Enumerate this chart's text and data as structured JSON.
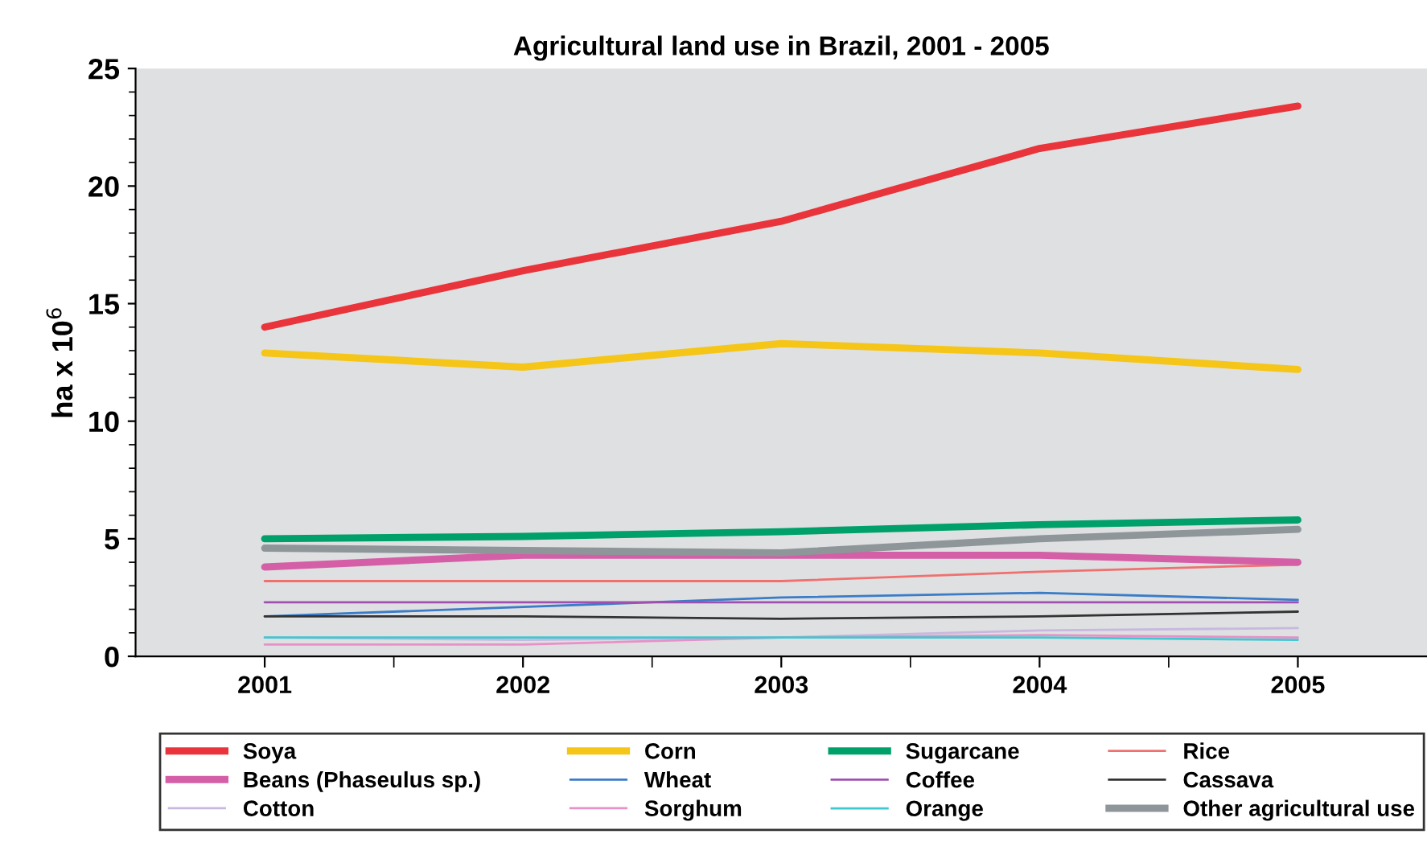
{
  "chart_data": {
    "type": "line",
    "title": "Agricultural land use in Brazil, 2001 - 2005",
    "ylabel": "ha x 10$^{6}$",
    "categories": [
      "2001",
      "2002",
      "2003",
      "2004",
      "2005"
    ],
    "ylim": [
      0,
      25
    ],
    "yticks": [
      0,
      5,
      10,
      15,
      20,
      25
    ],
    "grid": false,
    "legend": "bottom",
    "marker": "none",
    "line_style": "solid",
    "series": [
      {
        "name": "Soya",
        "color": "#e8343a",
        "values": [
          14.0,
          16.4,
          18.5,
          21.6,
          23.4
        ]
      },
      {
        "name": "Corn",
        "color": "#f5c518",
        "values": [
          12.9,
          12.3,
          13.3,
          12.9,
          12.2
        ]
      },
      {
        "name": "Sugarcane",
        "color": "#00a06b",
        "values": [
          5.0,
          5.1,
          5.3,
          5.6,
          5.8
        ]
      },
      {
        "name": "Rice",
        "color": "#f07070",
        "values": [
          3.2,
          3.2,
          3.2,
          3.6,
          3.9
        ]
      },
      {
        "name": "Beans (Phaseulus sp.)",
        "color": "#d45fa6",
        "values": [
          3.8,
          4.3,
          4.3,
          4.3,
          4.0
        ]
      },
      {
        "name": "Wheat",
        "color": "#3a7cc8",
        "values": [
          1.7,
          2.1,
          2.5,
          2.7,
          2.4
        ]
      },
      {
        "name": "Coffee",
        "color": "#a050b0",
        "values": [
          2.3,
          2.3,
          2.3,
          2.3,
          2.3
        ]
      },
      {
        "name": "Cassava",
        "color": "#333333",
        "values": [
          1.7,
          1.7,
          1.6,
          1.7,
          1.9
        ]
      },
      {
        "name": "Cotton",
        "color": "#c8b8e0",
        "values": [
          0.8,
          0.7,
          0.8,
          1.1,
          1.2
        ]
      },
      {
        "name": "Sorghum",
        "color": "#e890c8",
        "values": [
          0.5,
          0.5,
          0.8,
          0.9,
          0.8
        ]
      },
      {
        "name": "Orange",
        "color": "#40c8d0",
        "values": [
          0.8,
          0.8,
          0.8,
          0.8,
          0.7
        ]
      },
      {
        "name": "Other agricultural use",
        "color": "#8e969a",
        "values": [
          4.6,
          4.5,
          4.4,
          5.0,
          5.4
        ]
      }
    ]
  }
}
